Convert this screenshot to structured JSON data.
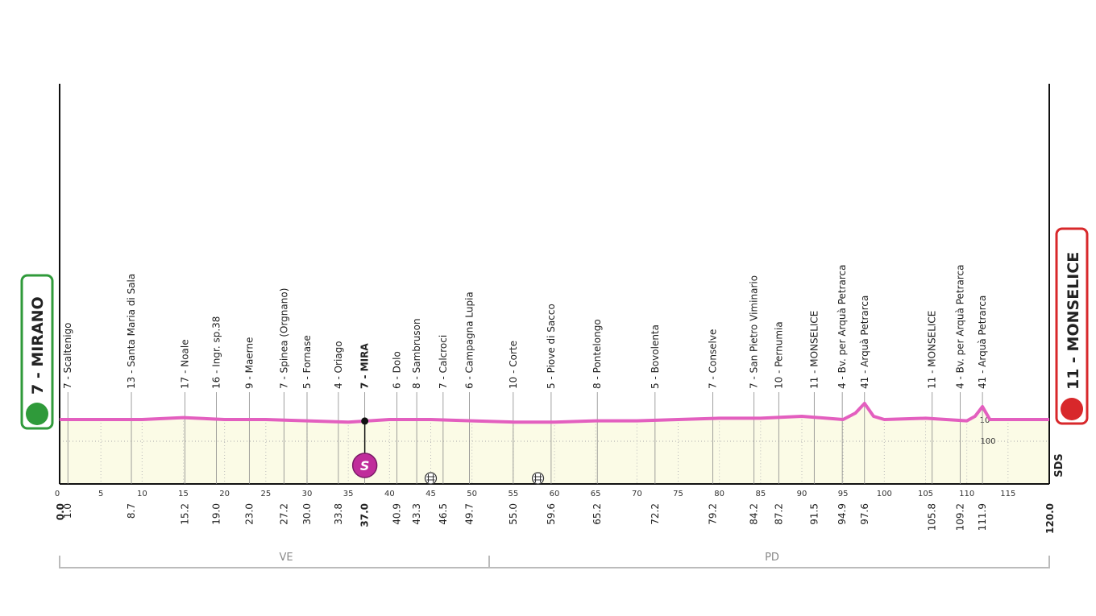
{
  "chart_data": {
    "type": "area",
    "color": "#e35fbf",
    "x": [
      0,
      5,
      10,
      15,
      20,
      25,
      30,
      35,
      40,
      45,
      50,
      55,
      60,
      65,
      70,
      75,
      80,
      85,
      90,
      95,
      96.5,
      97.6,
      98.7,
      100,
      105,
      110,
      111,
      111.9,
      112.8,
      115,
      120
    ],
    "values": [
      10,
      10,
      10,
      10.3,
      10,
      10,
      9.8,
      9.6,
      10,
      10,
      9.8,
      9.6,
      9.6,
      9.8,
      9.8,
      10,
      10.2,
      10.2,
      10.5,
      10,
      11,
      12.5,
      10.5,
      10,
      10.2,
      9.8,
      10.5,
      12,
      10,
      10,
      10
    ],
    "xlim": [
      0,
      120
    ],
    "xticks": [
      0,
      5,
      10,
      15,
      20,
      25,
      30,
      35,
      40,
      45,
      50,
      55,
      60,
      65,
      70,
      75,
      80,
      85,
      90,
      95,
      100,
      105,
      110,
      115
    ],
    "ylim": [
      0,
      75
    ],
    "start": {
      "name": "7 - MIRANO",
      "km": {
        "value": 0,
        "label": "0.0"
      }
    },
    "finish": {
      "name": "11 - MONSELICE",
      "km": {
        "value": 120,
        "label": "120.0"
      }
    },
    "waypoints": [
      {
        "name": "7 - Scaltenigo",
        "km": {
          "value": 1.0,
          "label": "1.0"
        }
      },
      {
        "name": "13 - Santa Maria di Sala",
        "km": {
          "value": 8.7,
          "label": "8.7"
        }
      },
      {
        "name": "17 - Noale",
        "km": {
          "value": 15.2,
          "label": "15.2"
        }
      },
      {
        "name": "16 - Ingr. sp.38",
        "km": {
          "value": 19.0,
          "label": "19.0"
        }
      },
      {
        "name": "9 - Maerne",
        "km": {
          "value": 23.0,
          "label": "23.0"
        }
      },
      {
        "name": "7 - Spinea (Orgnano)",
        "km": {
          "value": 27.2,
          "label": "27.2"
        }
      },
      {
        "name": "5 - Fornase",
        "km": {
          "value": 30.0,
          "label": "30.0"
        }
      },
      {
        "name": "4 - Oriago",
        "km": {
          "value": 33.8,
          "label": "33.8"
        }
      },
      {
        "name": "7 - MIRA",
        "km": {
          "value": 37.0,
          "label": "37.0"
        },
        "sprint": true
      },
      {
        "name": "6 - Dolo",
        "km": {
          "value": 40.9,
          "label": "40.9"
        }
      },
      {
        "name": "8 - Sambruson",
        "km": {
          "value": 43.3,
          "label": "43.3"
        }
      },
      {
        "name": "7 - Calcroci",
        "km": {
          "value": 46.5,
          "label": "46.5"
        }
      },
      {
        "name": "6 - Campagna Lupia",
        "km": {
          "value": 49.7,
          "label": "49.7"
        }
      },
      {
        "name": "10 - Corte",
        "km": {
          "value": 55.0,
          "label": "55.0"
        }
      },
      {
        "name": "5 - Piove di Sacco",
        "km": {
          "value": 59.6,
          "label": "59.6"
        }
      },
      {
        "name": "8 - Pontelongo",
        "km": {
          "value": 65.2,
          "label": "65.2"
        }
      },
      {
        "name": "5 - Bovolenta",
        "km": {
          "value": 72.2,
          "label": "72.2"
        }
      },
      {
        "name": "7 - Conselve",
        "km": {
          "value": 79.2,
          "label": "79.2"
        }
      },
      {
        "name": "7 - San Pietro Viminario",
        "km": {
          "value": 84.2,
          "label": "84.2"
        }
      },
      {
        "name": "10 - Pernumia",
        "km": {
          "value": 87.2,
          "label": "87.2"
        }
      },
      {
        "name": "11 - MONSELICE",
        "km": {
          "value": 91.5,
          "label": "91.5"
        }
      },
      {
        "name": "4 - Bv. per Arquà  Petrarca",
        "km": {
          "value": 94.9,
          "label": "94.9"
        }
      },
      {
        "name": "41 - Arquà Petrarca",
        "km": {
          "value": 97.6,
          "label": "97.6"
        }
      },
      {
        "name": "11 - MONSELICE",
        "km": {
          "value": 105.8,
          "label": "105.8"
        }
      },
      {
        "name": "4 - Bv. per Arquà  Petrarca",
        "km": {
          "value": 109.2,
          "label": "109.2"
        }
      },
      {
        "name": "41 - Arquà Petrarca",
        "km": {
          "value": 111.9,
          "label": "111.9"
        }
      }
    ],
    "sprint_label": "S",
    "level_crossings": [
      45.0,
      58.0
    ],
    "regions": [
      "VE",
      "PD"
    ],
    "scale_labels": [
      "10",
      "100"
    ],
    "logo": "SDS"
  }
}
